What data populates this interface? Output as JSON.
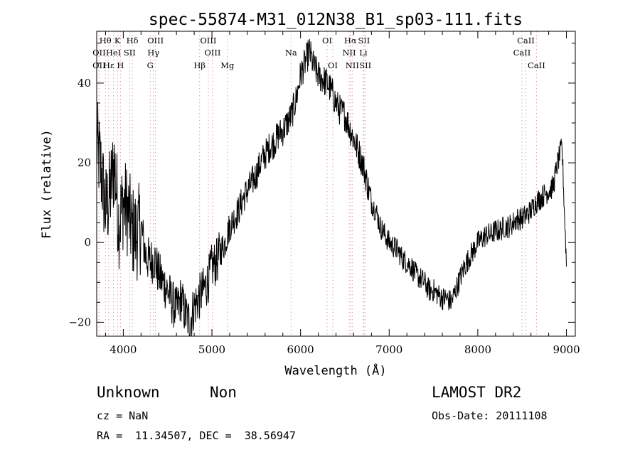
{
  "chart_data": {
    "type": "line",
    "title": "spec-55874-M31_012N38_B1_sp03-111.fits",
    "xlabel": "Wavelength (Å)",
    "ylabel": "Flux (relative)",
    "xlim": [
      3700,
      9100
    ],
    "ylim": [
      -23.5,
      53
    ],
    "xticks": [
      4000,
      5000,
      6000,
      7000,
      8000,
      9000
    ],
    "yticks": [
      -20,
      0,
      20,
      40
    ],
    "grid": false,
    "series": [
      {
        "x": [
          3700,
          3750,
          3800,
          3850,
          3900,
          3950,
          4000,
          4050,
          4100,
          4150,
          4200,
          4250,
          4300,
          4350,
          4400,
          4450,
          4500,
          4550,
          4600,
          4650,
          4700,
          4750,
          4800,
          4850,
          4900,
          4950,
          5000,
          5050,
          5100,
          5150,
          5200,
          5250,
          5300,
          5350,
          5400,
          5450,
          5500,
          5550,
          5600,
          5650,
          5700,
          5750,
          5800,
          5850,
          5900,
          5950,
          6000,
          6050,
          6100,
          6150,
          6200,
          6250,
          6300,
          6350,
          6400,
          6450,
          6500,
          6550,
          6600,
          6650,
          6700,
          6750,
          6800,
          6850,
          6900,
          6950,
          7000,
          7050,
          7100,
          7150,
          7200,
          7250,
          7300,
          7350,
          7400,
          7450,
          7500,
          7550,
          7600,
          7650,
          7700,
          7750,
          7800,
          7850,
          7900,
          7950,
          8000,
          8050,
          8100,
          8150,
          8200,
          8250,
          8300,
          8350,
          8400,
          8450,
          8500,
          8550,
          8600,
          8650,
          8700,
          8750,
          8800,
          8850,
          8900,
          8950,
          9000
        ],
        "y": [
          25,
          18,
          8,
          12,
          20,
          5,
          10,
          8,
          3,
          2,
          4,
          -3,
          -5,
          -4,
          -8,
          -10,
          -12,
          -15,
          -17,
          -14,
          -18,
          -20,
          -16,
          -14,
          -12,
          -10,
          -6,
          -5,
          -2,
          0,
          4,
          6,
          8,
          11,
          13,
          15,
          17,
          20,
          22,
          24,
          25,
          27,
          28,
          30,
          32,
          36,
          42,
          45,
          48,
          44,
          42,
          41,
          40,
          38,
          35,
          33,
          32,
          29,
          26,
          23,
          20,
          15,
          10,
          8,
          4,
          2,
          0,
          -1,
          -2,
          -4,
          -5,
          -6,
          -8,
          -9,
          -10,
          -12,
          -12,
          -13,
          -14,
          -14,
          -15,
          -12,
          -9,
          -6,
          -4,
          -2,
          0,
          1,
          2,
          2,
          3,
          3,
          4,
          4,
          5,
          6,
          6,
          7,
          8,
          10,
          11,
          12,
          13,
          14,
          20,
          24,
          -5
        ]
      }
    ],
    "line_markers": [
      {
        "label": "Hθ",
        "x": 3798,
        "row": 1,
        "color": "#000000"
      },
      {
        "label": "K",
        "x": 3934,
        "row": 1,
        "color": "#000000"
      },
      {
        "label": "Hδ",
        "x": 4102,
        "row": 1,
        "color": "#000000"
      },
      {
        "label": "OIII",
        "x": 4363,
        "row": 1,
        "color": "#000000"
      },
      {
        "label": "OIII",
        "x": 4959,
        "row": 1,
        "color": "#000000"
      },
      {
        "label": "OI",
        "x": 6300,
        "row": 1,
        "color": "#000000"
      },
      {
        "label": "Hα",
        "x": 6563,
        "row": 1,
        "color": "#000000"
      },
      {
        "label": "SII",
        "x": 6716,
        "row": 1,
        "color": "#000000"
      },
      {
        "label": "CaII",
        "x": 8542,
        "row": 1,
        "color": "#000000"
      },
      {
        "label": "OII",
        "x": 3727,
        "row": 2,
        "color": "#000000"
      },
      {
        "label": "HeI",
        "x": 3889,
        "row": 2,
        "color": "#000000"
      },
      {
        "label": "SII",
        "x": 4072,
        "row": 2,
        "color": "#000000"
      },
      {
        "label": "Hγ",
        "x": 4340,
        "row": 2,
        "color": "#000000"
      },
      {
        "label": "OIII",
        "x": 5007,
        "row": 2,
        "color": "#000000"
      },
      {
        "label": "Na",
        "x": 5893,
        "row": 2,
        "color": "#000000"
      },
      {
        "label": "NII",
        "x": 6548,
        "row": 2,
        "color": "#000000"
      },
      {
        "label": "Li",
        "x": 6708,
        "row": 2,
        "color": "#000000"
      },
      {
        "label": "CaII",
        "x": 8498,
        "row": 2,
        "color": "#000000"
      },
      {
        "label": "OII",
        "x": 3727,
        "row": 3,
        "color": "#000000"
      },
      {
        "label": "Hε",
        "x": 3835,
        "row": 3,
        "color": "#000000"
      },
      {
        "label": "H",
        "x": 3968,
        "row": 3,
        "color": "#000000"
      },
      {
        "label": "G",
        "x": 4304,
        "row": 3,
        "color": "#000000"
      },
      {
        "label": "Hβ",
        "x": 4861,
        "row": 3,
        "color": "#000000"
      },
      {
        "label": "Mg",
        "x": 5175,
        "row": 3,
        "color": "#000000"
      },
      {
        "label": "OI",
        "x": 6364,
        "row": 3,
        "color": "#000000"
      },
      {
        "label": "NII",
        "x": 6583,
        "row": 3,
        "color": "#000000"
      },
      {
        "label": "SII",
        "x": 6731,
        "row": 3,
        "color": "#000000"
      },
      {
        "label": "CaII",
        "x": 8662,
        "row": 3,
        "color": "#000000"
      }
    ],
    "colors": {
      "marker_dots": "#d9a0a0",
      "line": "#000000"
    }
  },
  "info": {
    "class_name": "Unknown",
    "subclass": "Non",
    "survey": "LAMOST DR2",
    "cz": "cz = NaN",
    "obs_date": "Obs-Date: 20111108",
    "coords": "RA =  11.34507, DEC =  38.56947"
  }
}
